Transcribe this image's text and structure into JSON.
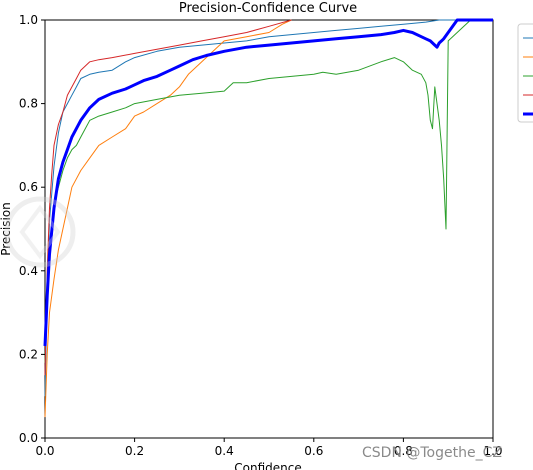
{
  "chart_data": {
    "type": "line",
    "title": "Precision-Confidence Curve",
    "xlabel": "Confidence",
    "ylabel": "Precision",
    "xlim": [
      0,
      1
    ],
    "ylim": [
      0,
      1
    ],
    "xticks": [
      "0.0",
      "0.2",
      "0.4",
      "0.6",
      "0.8",
      "1.0"
    ],
    "yticks": [
      "0.0",
      "0.2",
      "0.4",
      "0.6",
      "0.8",
      "1.0"
    ],
    "grid": false,
    "legend_placement": "outside-right",
    "series": [
      {
        "color": "#1f77b4",
        "width": 1,
        "x": [
          0,
          0.005,
          0.01,
          0.02,
          0.03,
          0.04,
          0.05,
          0.06,
          0.07,
          0.08,
          0.1,
          0.12,
          0.15,
          0.18,
          0.2,
          0.25,
          0.3,
          0.35,
          0.4,
          0.45,
          0.5,
          0.55,
          0.6,
          0.65,
          0.7,
          0.75,
          0.8,
          0.85,
          0.88,
          0.9,
          0.95,
          1.0
        ],
        "y": [
          0.1,
          0.35,
          0.52,
          0.65,
          0.73,
          0.78,
          0.8,
          0.82,
          0.84,
          0.86,
          0.87,
          0.875,
          0.88,
          0.9,
          0.91,
          0.925,
          0.935,
          0.94,
          0.945,
          0.95,
          0.96,
          0.965,
          0.97,
          0.975,
          0.98,
          0.985,
          0.99,
          0.995,
          1.0,
          1.0,
          1.0,
          1.0
        ]
      },
      {
        "color": "#ff7f0e",
        "width": 1,
        "x": [
          0,
          0.005,
          0.01,
          0.02,
          0.03,
          0.04,
          0.05,
          0.06,
          0.08,
          0.1,
          0.12,
          0.15,
          0.18,
          0.2,
          0.22,
          0.25,
          0.28,
          0.3,
          0.32,
          0.35,
          0.38,
          0.4,
          0.45,
          0.5,
          0.53,
          0.55
        ],
        "y": [
          0.05,
          0.2,
          0.3,
          0.38,
          0.45,
          0.5,
          0.55,
          0.6,
          0.64,
          0.67,
          0.7,
          0.72,
          0.74,
          0.77,
          0.78,
          0.8,
          0.82,
          0.84,
          0.87,
          0.9,
          0.93,
          0.95,
          0.96,
          0.97,
          0.99,
          1.0
        ]
      },
      {
        "color": "#2ca02c",
        "width": 1,
        "x": [
          0,
          0.005,
          0.01,
          0.02,
          0.03,
          0.04,
          0.05,
          0.06,
          0.07,
          0.08,
          0.1,
          0.12,
          0.15,
          0.18,
          0.2,
          0.25,
          0.3,
          0.35,
          0.4,
          0.42,
          0.45,
          0.5,
          0.55,
          0.6,
          0.62,
          0.65,
          0.7,
          0.75,
          0.78,
          0.8,
          0.82,
          0.84,
          0.85,
          0.855,
          0.86,
          0.865,
          0.87,
          0.875,
          0.88,
          0.885,
          0.89,
          0.895,
          0.9,
          0.92,
          0.95,
          1.0
        ],
        "y": [
          0.18,
          0.32,
          0.45,
          0.56,
          0.6,
          0.64,
          0.67,
          0.69,
          0.7,
          0.72,
          0.76,
          0.77,
          0.78,
          0.79,
          0.8,
          0.81,
          0.82,
          0.825,
          0.83,
          0.85,
          0.85,
          0.86,
          0.865,
          0.87,
          0.875,
          0.87,
          0.88,
          0.9,
          0.91,
          0.9,
          0.88,
          0.87,
          0.85,
          0.82,
          0.76,
          0.74,
          0.84,
          0.8,
          0.76,
          0.7,
          0.62,
          0.5,
          0.95,
          0.97,
          1.0,
          1.0
        ]
      },
      {
        "color": "#d62728",
        "width": 1,
        "x": [
          0,
          0.005,
          0.01,
          0.015,
          0.02,
          0.03,
          0.04,
          0.05,
          0.06,
          0.07,
          0.08,
          0.1,
          0.12,
          0.15,
          0.2,
          0.25,
          0.3,
          0.35,
          0.4,
          0.45,
          0.5,
          0.55
        ],
        "y": [
          0.15,
          0.4,
          0.55,
          0.63,
          0.7,
          0.75,
          0.78,
          0.82,
          0.84,
          0.86,
          0.88,
          0.9,
          0.905,
          0.91,
          0.92,
          0.93,
          0.94,
          0.95,
          0.96,
          0.97,
          0.985,
          1.0
        ]
      },
      {
        "color": "#0000ff",
        "width": 3,
        "x": [
          0,
          0.005,
          0.01,
          0.02,
          0.03,
          0.04,
          0.05,
          0.06,
          0.08,
          0.1,
          0.12,
          0.15,
          0.18,
          0.2,
          0.22,
          0.25,
          0.28,
          0.3,
          0.33,
          0.36,
          0.4,
          0.45,
          0.5,
          0.55,
          0.6,
          0.65,
          0.7,
          0.75,
          0.78,
          0.8,
          0.82,
          0.84,
          0.85,
          0.86,
          0.87,
          0.875,
          0.88,
          0.885,
          0.89,
          0.9,
          0.92,
          0.95,
          1.0
        ],
        "y": [
          0.22,
          0.34,
          0.44,
          0.55,
          0.62,
          0.66,
          0.69,
          0.72,
          0.76,
          0.79,
          0.81,
          0.825,
          0.835,
          0.845,
          0.855,
          0.865,
          0.88,
          0.89,
          0.905,
          0.915,
          0.925,
          0.935,
          0.94,
          0.945,
          0.95,
          0.955,
          0.96,
          0.965,
          0.97,
          0.975,
          0.97,
          0.96,
          0.955,
          0.95,
          0.94,
          0.935,
          0.945,
          0.95,
          0.955,
          0.97,
          1.0,
          1.0,
          1.0
        ]
      }
    ]
  },
  "watermark": "CSDN @Togethe_CZ"
}
